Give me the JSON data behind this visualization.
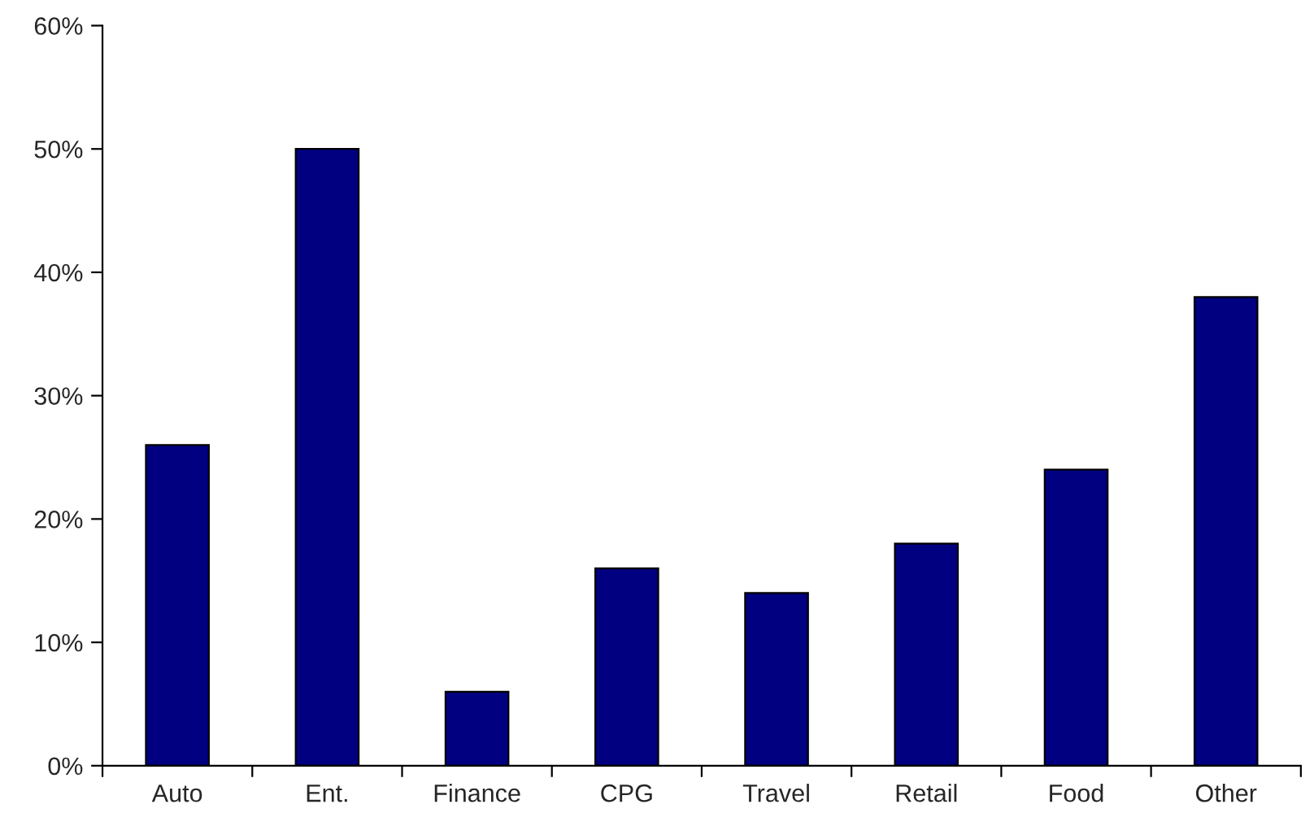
{
  "chart_data": {
    "type": "bar",
    "categories": [
      "Auto",
      "Ent.",
      "Finance",
      "CPG",
      "Travel",
      "Retail",
      "Food",
      "Other"
    ],
    "values": [
      26,
      50,
      6,
      16,
      14,
      18,
      24,
      38
    ],
    "color": "#000080",
    "ylim": [
      0,
      60
    ],
    "yticks": [
      {
        "value": 0,
        "label": "0%"
      },
      {
        "value": 10,
        "label": "10%"
      },
      {
        "value": 20,
        "label": "20%"
      },
      {
        "value": 30,
        "label": "30%"
      },
      {
        "value": 40,
        "label": "40%"
      },
      {
        "value": 50,
        "label": "50%"
      },
      {
        "value": 60,
        "label": "60%"
      }
    ],
    "grid": false,
    "legend": false
  }
}
